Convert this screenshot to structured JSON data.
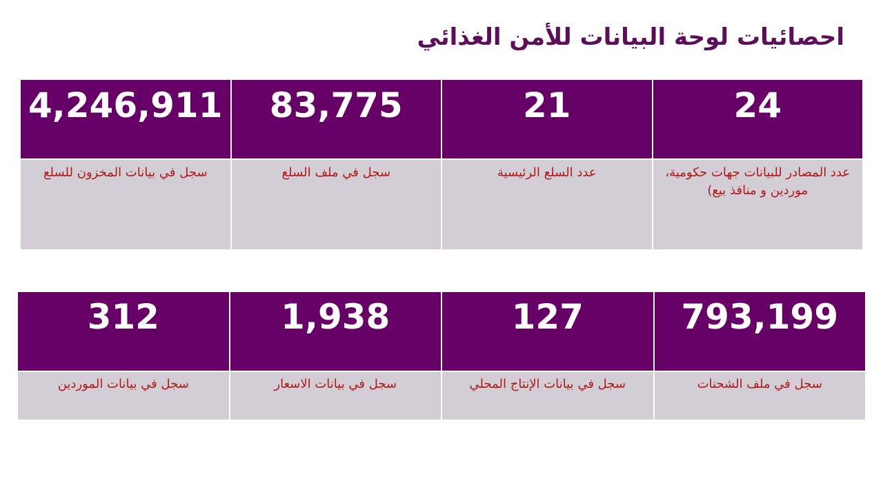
{
  "title": "احصائيات لوحة البيانات للأمن الغذائي",
  "table1": {
    "cells": [
      {
        "value": "24",
        "label": "عدد المصادر للبيانات جهات حكومية، موردين و منافذ بيع)"
      },
      {
        "value": "21",
        "label": "عدد السلع الرئيسية"
      },
      {
        "value": "83,775",
        "label": "سجل في ملف السلع"
      },
      {
        "value": "4,246,911",
        "label": "سجل في بيانات المخزون للسلع"
      }
    ]
  },
  "table2": {
    "cells": [
      {
        "value": "793,199",
        "label": "سجل في ملف الشحنات"
      },
      {
        "value": "127",
        "label": "سجل في بيانات الإنتاج المحلي"
      },
      {
        "value": "1,938",
        "label": "سجل في بيانات الاسعار"
      },
      {
        "value": "312",
        "label": "سجل في بيانات الموردين"
      }
    ]
  },
  "colors": {
    "title": "#5c0e5a",
    "header_bg": "#660066",
    "header_text": "#ffffff",
    "label_bg": "#d3cdd5",
    "label_text": "#b01818"
  }
}
